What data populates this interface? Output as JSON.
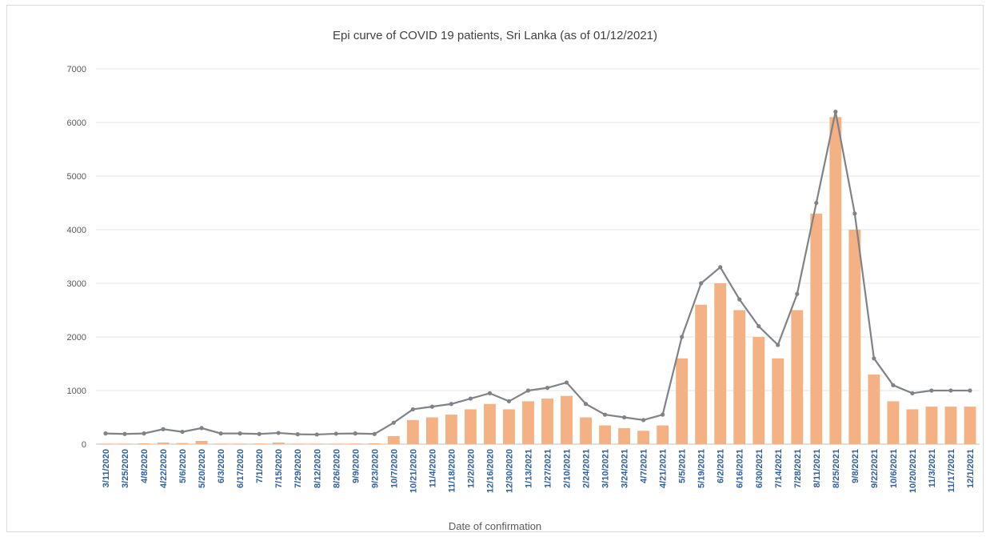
{
  "chart_data": {
    "type": "bar",
    "title": "Epi curve of COVID 19 patients, Sri Lanka  (as of 01/12/2021)",
    "xlabel": "Date of confirmation",
    "ylabel": "",
    "ylim": [
      0,
      7000
    ],
    "y_ticks": [
      0,
      1000,
      2000,
      3000,
      4000,
      5000,
      6000,
      7000
    ],
    "grid": "horizontal",
    "colors": {
      "bars": "#f4b183",
      "markers": "#7f8287",
      "grid": "#e6e6e6",
      "tick_text": "#2e5f9e"
    },
    "categories": [
      "3/11/2020",
      "3/25/2020",
      "4/8/2020",
      "4/22/2020",
      "5/6/2020",
      "5/20/2020",
      "6/3/2020",
      "6/17/2020",
      "7/1/2020",
      "7/15/2020",
      "7/29/2020",
      "8/12/2020",
      "8/26/2020",
      "9/9/2020",
      "9/23/2020",
      "10/7/2020",
      "10/21/2020",
      "11/4/2020",
      "11/18/2020",
      "12/2/2020",
      "12/16/2020",
      "12/30/2020",
      "1/13/2021",
      "1/27/2021",
      "2/10/2021",
      "2/24/2021",
      "3/10/2021",
      "3/24/2021",
      "4/7/2021",
      "4/21/2021",
      "5/5/2021",
      "5/19/2021",
      "6/2/2021",
      "6/16/2021",
      "6/30/2021",
      "7/14/2021",
      "7/28/2021",
      "8/11/2021",
      "8/25/2021",
      "9/8/2021",
      "9/22/2021",
      "10/6/2021",
      "10/20/2021",
      "11/3/2021",
      "11/17/2021",
      "12/1/2021"
    ],
    "series": [
      {
        "values": [
          10,
          10,
          15,
          30,
          20,
          60,
          10,
          10,
          12,
          30,
          10,
          10,
          10,
          12,
          15,
          150,
          450,
          500,
          550,
          650,
          750,
          650,
          800,
          850,
          900,
          500,
          350,
          300,
          250,
          350,
          1600,
          2600,
          3000,
          2500,
          2000,
          1600,
          2500,
          4300,
          6100,
          4000,
          1300,
          800,
          650,
          700,
          700,
          700
        ]
      },
      {
        "values": [
          200,
          190,
          200,
          280,
          230,
          300,
          200,
          200,
          190,
          210,
          185,
          180,
          195,
          200,
          190,
          400,
          650,
          700,
          750,
          850,
          950,
          800,
          1000,
          1050,
          1150,
          750,
          550,
          500,
          450,
          550,
          2000,
          3000,
          3300,
          2700,
          2200,
          1850,
          2800,
          4500,
          6200,
          4300,
          1600,
          1100,
          950,
          1000,
          1000,
          1000
        ]
      }
    ]
  }
}
